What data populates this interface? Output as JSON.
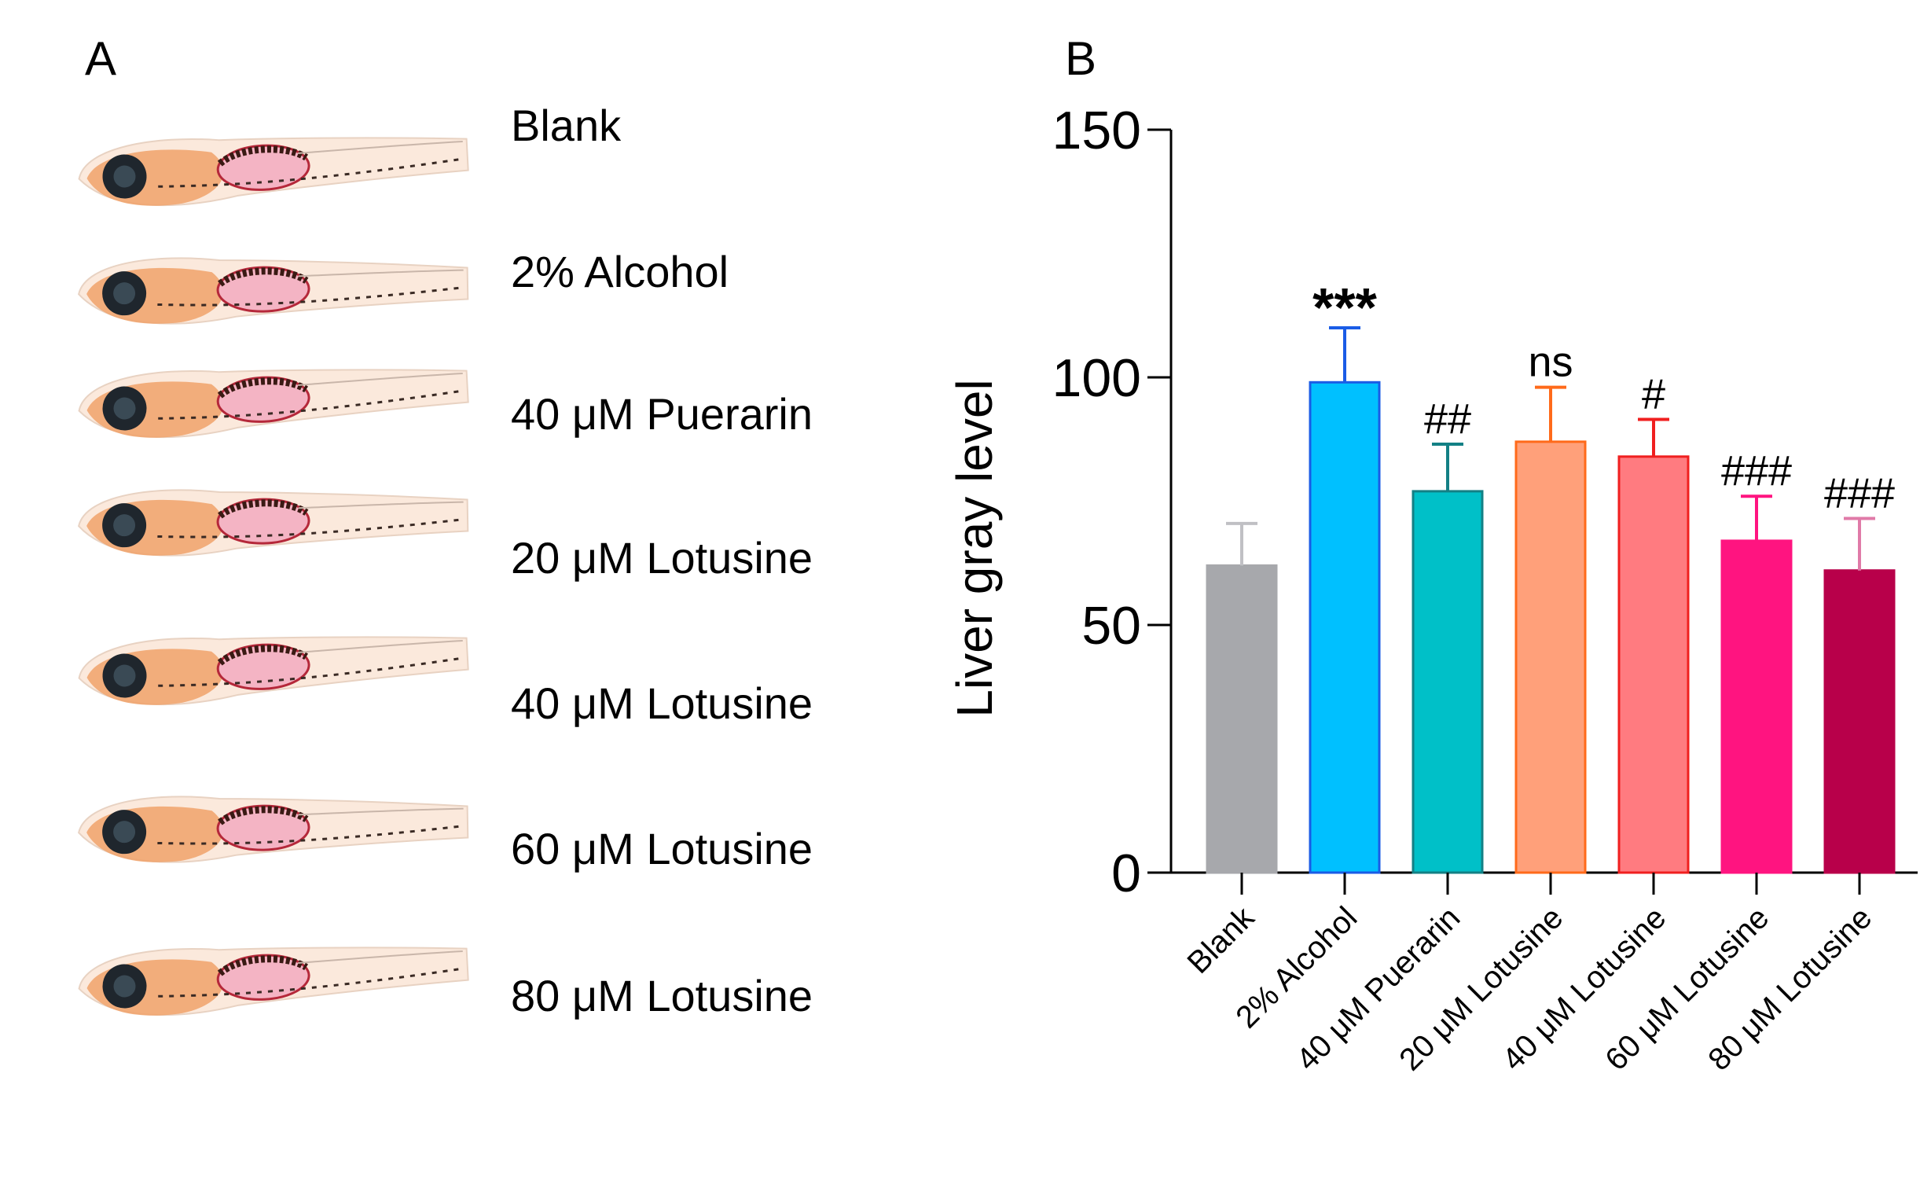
{
  "panels": {
    "a": "A",
    "b": "B"
  },
  "fish_labels": [
    "Blank",
    "2% Alcohol",
    "40 μM Puerarin",
    "20 μM Lotusine",
    "40 μM Lotusine",
    "60 μM Lotusine",
    "80 μM Lotusine"
  ],
  "chart_data": {
    "type": "bar",
    "title": "",
    "xlabel": "",
    "ylabel": "Liver gray level",
    "ylim": [
      0,
      150
    ],
    "yticks": [
      0,
      50,
      100,
      150
    ],
    "grid": false,
    "categories": [
      "Blank",
      "2% Alcohol",
      "40 μM Puerarin",
      "20 μM Lotusine",
      "40 μM Lotusine",
      "60 μM Lotusine",
      "80 μM Lotusine"
    ],
    "values": [
      62,
      99,
      77,
      87,
      84,
      67,
      61
    ],
    "errors": [
      8.5,
      11,
      9.5,
      11,
      7.5,
      9,
      10.5
    ],
    "annotations": [
      "",
      "***",
      "##",
      "ns",
      "#",
      "###",
      "###"
    ],
    "colors": {
      "fill": [
        "#a7a8ac",
        "#00c0ff",
        "#00c0c8",
        "#ffa07a",
        "#ff7b80",
        "#ff1480",
        "#b8004a"
      ],
      "stroke": [
        "#a7a8ac",
        "#1a5ce6",
        "#138085",
        "#ff6a1a",
        "#f01f1f",
        "#ff1480",
        "#b8004a"
      ],
      "error": [
        "#c0c0c4",
        "#1a5ce6",
        "#138085",
        "#ff6a1a",
        "#f01f1f",
        "#ff1480",
        "#e07aa8"
      ]
    }
  }
}
